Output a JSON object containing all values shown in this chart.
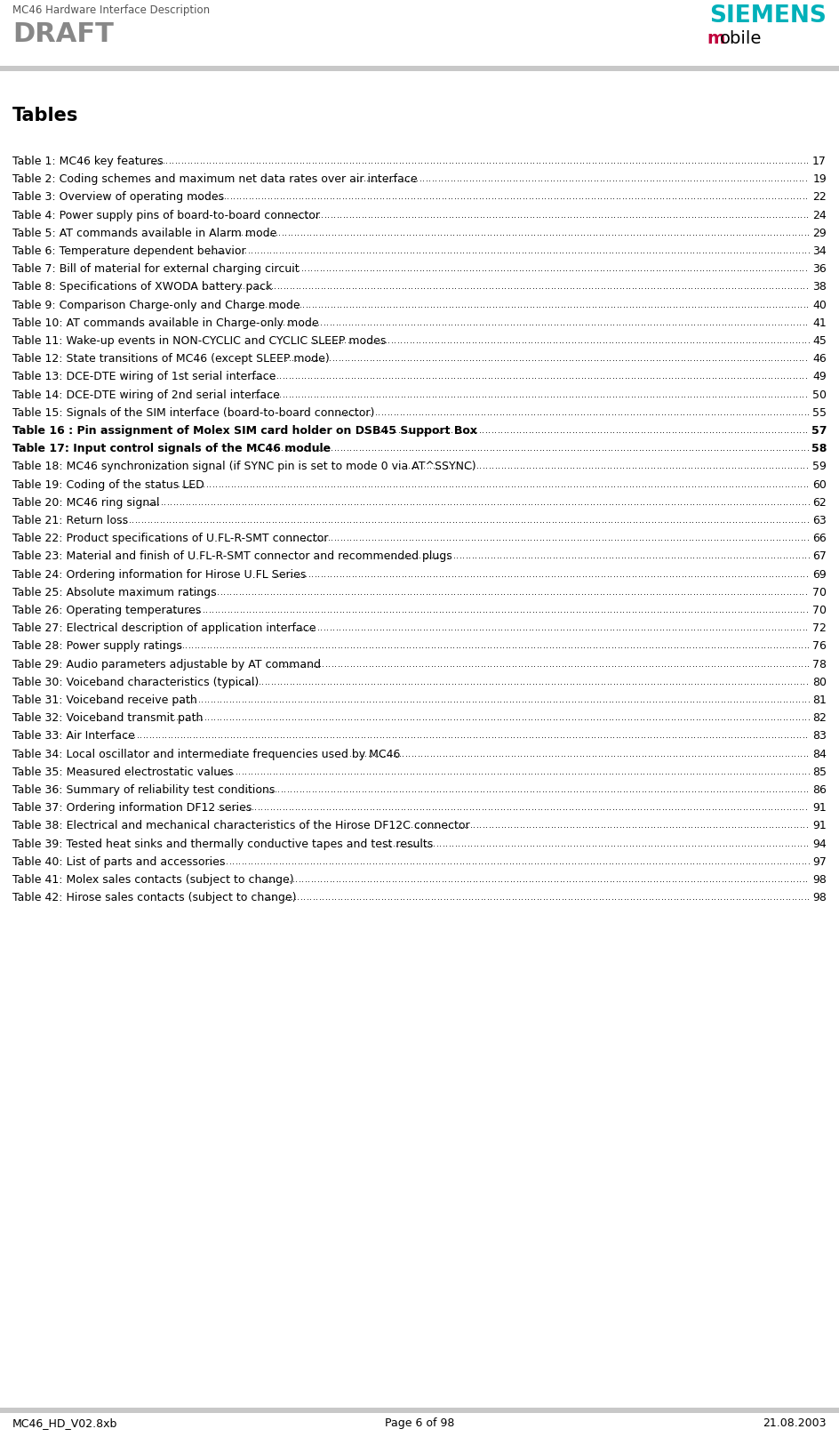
{
  "header_left_line1": "MC46 Hardware Interface Description",
  "header_left_line2": "DRAFT",
  "header_right_line1": "SIEMENS",
  "header_right_line2_m": "m",
  "header_right_line2_rest": "obile",
  "siemens_color": "#00b0b9",
  "m_color": "#c0003c",
  "header_line1_color": "#555555",
  "draft_color": "#888888",
  "footer_left": "MC46_HD_V02.8xb",
  "footer_center": "Page 6 of 98",
  "footer_right": "21.08.2003",
  "section_title": "Tables",
  "toc_entries": [
    [
      "Table 1: MC46 key features ",
      "17"
    ],
    [
      "Table 2: Coding schemes and maximum net data rates over air interface ",
      "19"
    ],
    [
      "Table 3: Overview of operating modes ",
      "22"
    ],
    [
      "Table 4: Power supply pins of board-to-board connector ",
      "24"
    ],
    [
      "Table 5: AT commands available in Alarm mode ",
      "29"
    ],
    [
      "Table 6: Temperature dependent behavior ",
      "34"
    ],
    [
      "Table 7: Bill of material for external charging circuit ",
      "36"
    ],
    [
      "Table 8: Specifications of XWODA battery pack ",
      "38"
    ],
    [
      "Table 9: Comparison Charge-only and Charge mode ",
      "40"
    ],
    [
      "Table 10: AT commands available in Charge-only mode",
      "41"
    ],
    [
      "Table 11: Wake-up events in NON-CYCLIC and CYCLIC SLEEP modes",
      "45"
    ],
    [
      "Table 12: State transitions of MC46 (except SLEEP mode) ",
      "46"
    ],
    [
      "Table 13: DCE-DTE wiring of 1st serial interface ",
      "49"
    ],
    [
      "Table 14: DCE-DTE wiring of 2nd serial interface ",
      "50"
    ],
    [
      "Table 15: Signals of the SIM interface (board-to-board connector) ",
      "55"
    ],
    [
      "Table 16 : Pin assignment of Molex SIM card holder on DSB45 Support Box ",
      "57"
    ],
    [
      "Table 17: Input control signals of the MC46 module",
      "58"
    ],
    [
      "Table 18: MC46 synchronization signal (if SYNC pin is set to mode 0 via AT^SSYNC)",
      "59"
    ],
    [
      "Table 19: Coding of the status LED",
      "60"
    ],
    [
      "Table 20: MC46 ring signal",
      "62"
    ],
    [
      "Table 21: Return loss ",
      "63"
    ],
    [
      "Table 22: Product specifications of U.FL-R-SMT connector ",
      "66"
    ],
    [
      "Table 23: Material and finish of U.FL-R-SMT connector and recommended plugs",
      "67"
    ],
    [
      "Table 24: Ordering information for Hirose U.FL Series",
      "69"
    ],
    [
      "Table 25: Absolute maximum ratings ",
      "70"
    ],
    [
      "Table 26: Operating temperatures",
      "70"
    ],
    [
      "Table 27: Electrical description of application interface ",
      "72"
    ],
    [
      "Table 28: Power supply ratings ",
      "76"
    ],
    [
      "Table 29: Audio parameters adjustable by AT command ",
      "78"
    ],
    [
      "Table 30: Voiceband characteristics (typical) ",
      "80"
    ],
    [
      "Table 31: Voiceband receive path ",
      "81"
    ],
    [
      "Table 32: Voiceband transmit path",
      "82"
    ],
    [
      "Table 33: Air Interface",
      "83"
    ],
    [
      "Table 34: Local oscillator and intermediate frequencies used by MC46 ",
      "84"
    ],
    [
      "Table 35: Measured electrostatic values ",
      "85"
    ],
    [
      "Table 36: Summary of reliability test conditions",
      "86"
    ],
    [
      "Table 37: Ordering information DF12 series",
      "91"
    ],
    [
      "Table 38: Electrical and mechanical characteristics of the Hirose DF12C connector",
      "91"
    ],
    [
      "Table 39: Tested heat sinks and thermally conductive tapes and test results ",
      "94"
    ],
    [
      "Table 40: List of parts and accessories ",
      "97"
    ],
    [
      "Table 41: Molex sales contacts (subject to change) ",
      "98"
    ],
    [
      "Table 42: Hirose sales contacts (subject to change) ",
      "98"
    ]
  ],
  "bold_indices": [
    15,
    16
  ],
  "background_color": "#ffffff",
  "text_color": "#000000",
  "header_bar_color": "#c8c8c8",
  "footer_bar_color": "#c8c8c8"
}
